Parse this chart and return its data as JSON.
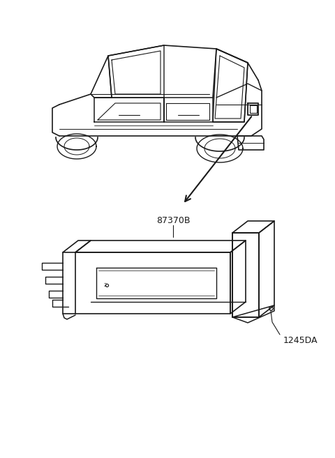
{
  "bg_color": "#ffffff",
  "line_color": "#1a1a1a",
  "label1": "87370B",
  "label2": "1245DA",
  "fig_width": 4.8,
  "fig_height": 6.57,
  "dpi": 100
}
